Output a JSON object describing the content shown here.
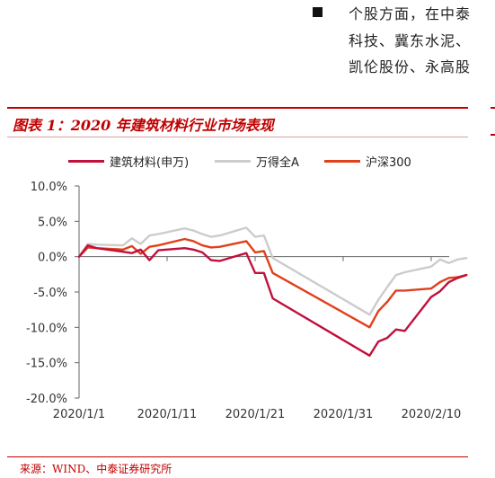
{
  "top_text": {
    "lines": [
      "个股方面，在中泰",
      "科技、冀东水泥、",
      "凯伦股份、永高股"
    ]
  },
  "figure": {
    "title": "图表 1：2020 年建筑材料行业市场表现",
    "source": "来源：WIND、中泰证券研究所"
  },
  "colors": {
    "series_1": "#c0103c",
    "series_2": "#cccccc",
    "series_3": "#e0401a",
    "accent": "#c00000"
  },
  "chart_data": {
    "type": "line",
    "title": "",
    "xlabel": "",
    "ylabel": "",
    "x_tick_labels": [
      "2020/1/1",
      "2020/1/11",
      "2020/1/21",
      "2020/1/31",
      "2020/2/10"
    ],
    "y_tick_labels": [
      "10.0%",
      "5.0%",
      "0.0%",
      "-5.0%",
      "-10.0%",
      "-15.0%",
      "-20.0%"
    ],
    "ylim": [
      -20,
      10
    ],
    "grid": false,
    "legend_position": "top",
    "series": [
      {
        "name": "建筑材料(申万)",
        "points": [
          [
            "2020/1/1",
            0.0
          ],
          [
            "2020/1/2",
            1.6
          ],
          [
            "2020/1/3",
            1.2
          ],
          [
            "2020/1/6",
            0.7
          ],
          [
            "2020/1/7",
            0.5
          ],
          [
            "2020/1/8",
            1.0
          ],
          [
            "2020/1/9",
            -0.5
          ],
          [
            "2020/1/10",
            0.9
          ],
          [
            "2020/1/13",
            1.2
          ],
          [
            "2020/1/14",
            1.0
          ],
          [
            "2020/1/15",
            0.6
          ],
          [
            "2020/1/16",
            -0.5
          ],
          [
            "2020/1/17",
            -0.6
          ],
          [
            "2020/1/20",
            0.5
          ],
          [
            "2020/1/21",
            -2.3
          ],
          [
            "2020/1/22",
            -2.3
          ],
          [
            "2020/1/23",
            -5.9
          ],
          [
            "2020/2/3",
            -14.0
          ],
          [
            "2020/2/4",
            -12.0
          ],
          [
            "2020/2/5",
            -11.5
          ],
          [
            "2020/2/6",
            -10.3
          ],
          [
            "2020/2/7",
            -10.5
          ],
          [
            "2020/2/10",
            -5.7
          ],
          [
            "2020/2/11",
            -4.9
          ],
          [
            "2020/2/12",
            -3.6
          ],
          [
            "2020/2/13",
            -3.0
          ],
          [
            "2020/2/14",
            -2.6
          ]
        ]
      },
      {
        "name": "万得全A",
        "points": [
          [
            "2020/1/1",
            0.0
          ],
          [
            "2020/1/2",
            1.8
          ],
          [
            "2020/1/3",
            1.7
          ],
          [
            "2020/1/6",
            1.6
          ],
          [
            "2020/1/7",
            2.6
          ],
          [
            "2020/1/8",
            1.8
          ],
          [
            "2020/1/9",
            3.0
          ],
          [
            "2020/1/10",
            3.2
          ],
          [
            "2020/1/13",
            4.0
          ],
          [
            "2020/1/14",
            3.7
          ],
          [
            "2020/1/15",
            3.2
          ],
          [
            "2020/1/16",
            2.8
          ],
          [
            "2020/1/17",
            3.0
          ],
          [
            "2020/1/20",
            4.1
          ],
          [
            "2020/1/21",
            2.8
          ],
          [
            "2020/1/22",
            3.0
          ],
          [
            "2020/1/23",
            -0.2
          ],
          [
            "2020/2/3",
            -8.2
          ],
          [
            "2020/2/4",
            -6.1
          ],
          [
            "2020/2/5",
            -4.3
          ],
          [
            "2020/2/6",
            -2.6
          ],
          [
            "2020/2/7",
            -2.2
          ],
          [
            "2020/2/10",
            -1.4
          ],
          [
            "2020/2/11",
            -0.4
          ],
          [
            "2020/2/12",
            -0.9
          ],
          [
            "2020/2/13",
            -0.4
          ],
          [
            "2020/2/14",
            -0.2
          ]
        ]
      },
      {
        "name": "沪深300",
        "points": [
          [
            "2020/1/1",
            0.0
          ],
          [
            "2020/1/2",
            1.3
          ],
          [
            "2020/1/3",
            1.2
          ],
          [
            "2020/1/6",
            1.0
          ],
          [
            "2020/1/7",
            1.5
          ],
          [
            "2020/1/8",
            0.4
          ],
          [
            "2020/1/9",
            1.4
          ],
          [
            "2020/1/10",
            1.6
          ],
          [
            "2020/1/13",
            2.5
          ],
          [
            "2020/1/14",
            2.2
          ],
          [
            "2020/1/15",
            1.6
          ],
          [
            "2020/1/16",
            1.3
          ],
          [
            "2020/1/17",
            1.4
          ],
          [
            "2020/1/20",
            2.2
          ],
          [
            "2020/1/21",
            0.6
          ],
          [
            "2020/1/22",
            0.8
          ],
          [
            "2020/1/23",
            -2.3
          ],
          [
            "2020/2/3",
            -10.0
          ],
          [
            "2020/2/4",
            -7.7
          ],
          [
            "2020/2/5",
            -6.4
          ],
          [
            "2020/2/6",
            -4.8
          ],
          [
            "2020/2/7",
            -4.8
          ],
          [
            "2020/2/10",
            -4.5
          ],
          [
            "2020/2/11",
            -3.6
          ],
          [
            "2020/2/12",
            -3.0
          ],
          [
            "2020/2/13",
            -2.9
          ],
          [
            "2020/2/14",
            -2.6
          ]
        ]
      }
    ]
  }
}
